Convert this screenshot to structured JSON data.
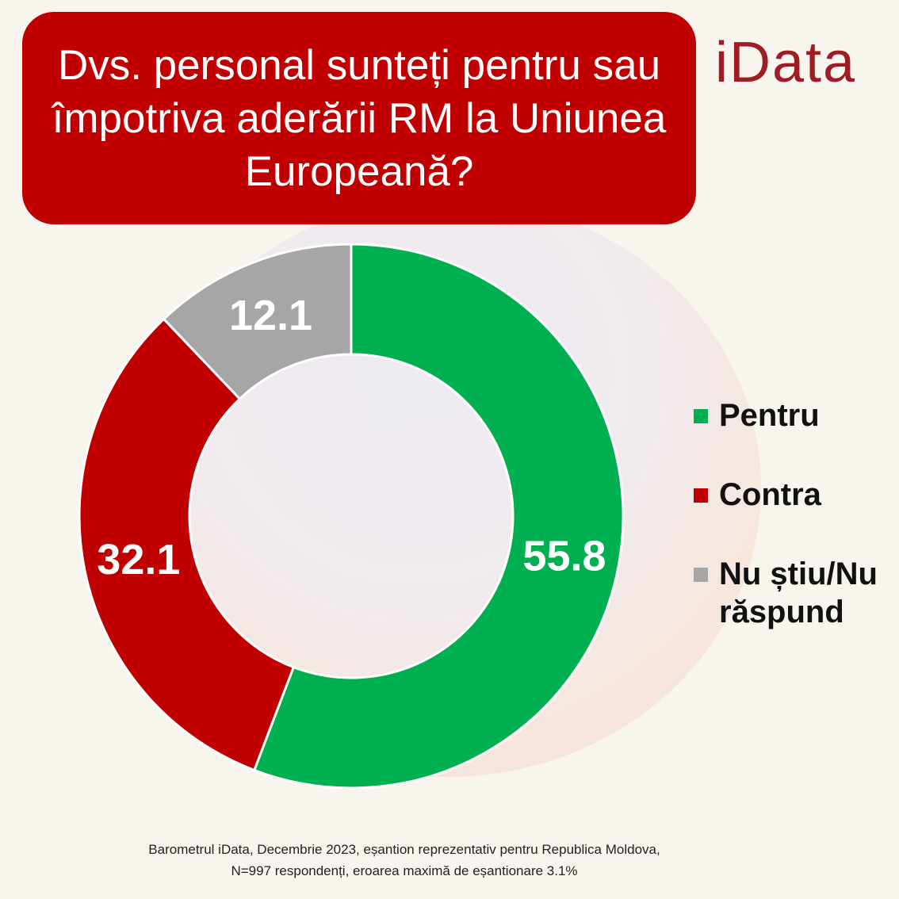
{
  "title": "Dvs. personal sunteți pentru sau împotriva aderării RM la Uniunea Europeană?",
  "logo": "iData",
  "chart_data": {
    "type": "pie",
    "variant": "donut",
    "title": "Dvs. personal sunteți pentru sau împotriva aderării RM la Uniunea Europeană?",
    "categories": [
      "Pentru",
      "Contra",
      "Nu știu/Nu răspund"
    ],
    "values": [
      55.8,
      32.1,
      12.1
    ],
    "labels": [
      "55.8",
      "32.1",
      "12.1"
    ],
    "colors": [
      "#00b050",
      "#c00000",
      "#a6a6a6"
    ],
    "legend": "right"
  },
  "footnote": {
    "line1": "Barometrul iData, Decembrie 2023, eșantion reprezentativ pentru Republica Moldova,",
    "line2": "N=997 respondenți, eroarea maximă de eșantionare 3.1%"
  }
}
